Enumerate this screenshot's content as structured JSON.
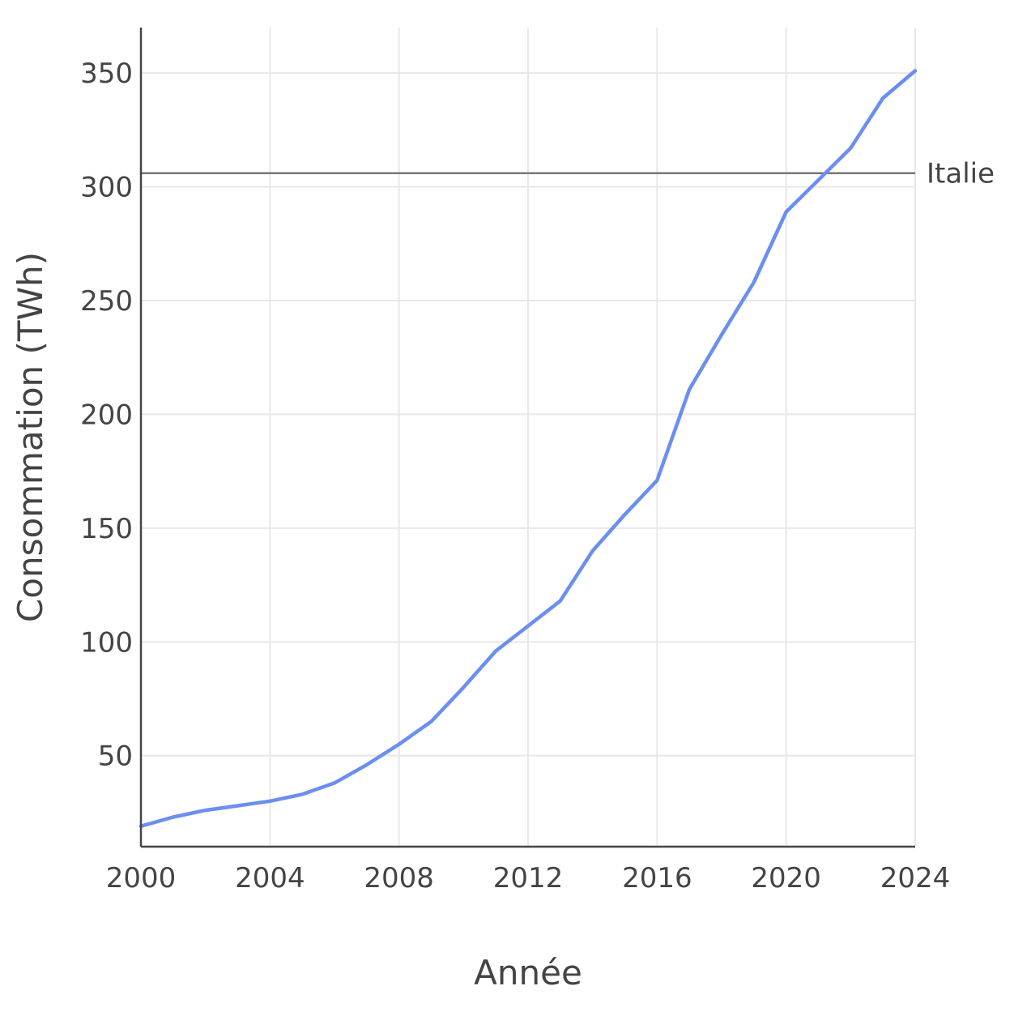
{
  "chart_data": {
    "type": "line",
    "title": "",
    "xlabel": "Année",
    "ylabel": "Consommation (TWh)",
    "xlim": [
      2000,
      2024
    ],
    "ylim": [
      10,
      370
    ],
    "x_ticks": [
      2000,
      2004,
      2008,
      2012,
      2016,
      2020,
      2024
    ],
    "y_ticks": [
      50,
      100,
      150,
      200,
      250,
      300,
      350
    ],
    "grid": true,
    "x": [
      2000,
      2001,
      2002,
      2003,
      2004,
      2005,
      2006,
      2007,
      2008,
      2009,
      2010,
      2011,
      2012,
      2013,
      2014,
      2015,
      2016,
      2017,
      2018,
      2019,
      2020,
      2021,
      2022,
      2023,
      2024
    ],
    "series": [
      {
        "color": "#6a8ff0",
        "values": [
          19,
          23,
          26,
          28,
          30,
          33,
          38,
          46,
          55,
          65,
          80,
          96,
          107,
          118,
          140,
          156,
          171,
          211,
          235,
          258,
          289,
          303,
          317,
          339,
          351
        ]
      }
    ],
    "reference_line": {
      "label": "Italie",
      "value": 306,
      "color": "#777777"
    }
  }
}
